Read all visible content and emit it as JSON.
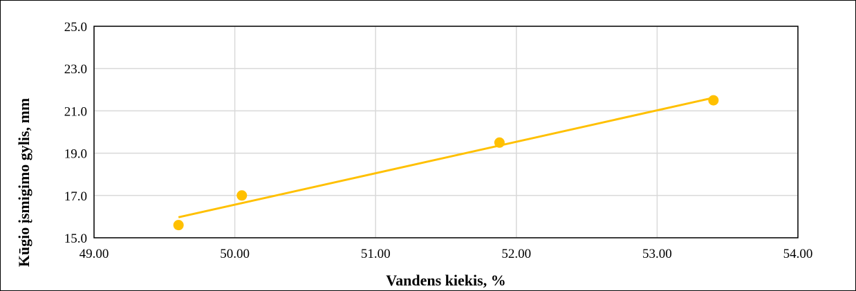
{
  "chart_data": {
    "type": "scatter",
    "title": "",
    "xlabel": "Vandens kiekis, %",
    "ylabel": "Kūgio įsmigimo gylis, mm",
    "xlim": [
      49.0,
      54.0
    ],
    "ylim": [
      15.0,
      25.0
    ],
    "x_ticks": [
      "49.00",
      "50.00",
      "51.00",
      "52.00",
      "53.00",
      "54.00"
    ],
    "y_ticks": [
      "15.0",
      "17.0",
      "19.0",
      "21.0",
      "23.0",
      "25.0"
    ],
    "grid": true,
    "legend": "none",
    "series": [
      {
        "points": [
          {
            "x": 49.6,
            "y": 15.6
          },
          {
            "x": 50.05,
            "y": 17.0
          },
          {
            "x": 51.88,
            "y": 19.5
          },
          {
            "x": 53.4,
            "y": 21.5
          }
        ]
      }
    ],
    "trendline": {
      "type": "linear",
      "from": {
        "x": 49.6,
        "y": 15.97
      },
      "to": {
        "x": 53.4,
        "y": 21.62
      }
    },
    "colors": {
      "marker": "#FFC000",
      "trendline": "#FFC000",
      "grid": "#D9D9D9",
      "axis": "#000000"
    }
  }
}
